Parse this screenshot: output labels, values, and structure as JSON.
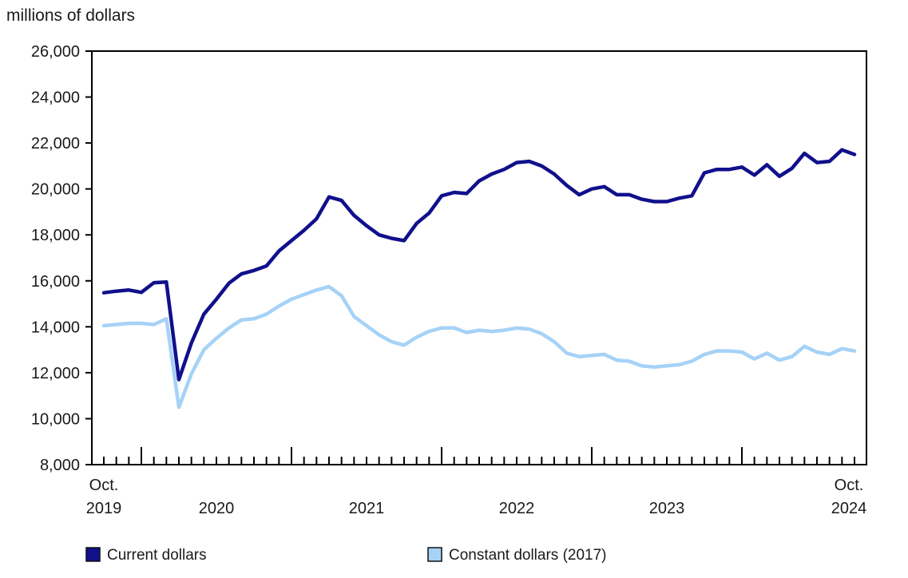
{
  "page": {
    "background": "#ffffff"
  },
  "chart_data": {
    "type": "line",
    "title": "millions of dollars",
    "xlabel": "",
    "ylabel": "millions of dollars",
    "ylim": [
      8000,
      26000
    ],
    "ytick_step": 2000,
    "ytick_values": [
      8000,
      10000,
      12000,
      14000,
      16000,
      18000,
      20000,
      22000,
      24000,
      26000
    ],
    "ytick_labels": [
      "8,000",
      "10,000",
      "12,000",
      "14,000",
      "16,000",
      "18,000",
      "20,000",
      "22,000",
      "24,000",
      "26,000"
    ],
    "x_start_label": {
      "line1": "Oct.",
      "line2": "2019"
    },
    "x_end_label": {
      "line1": "Oct.",
      "line2": "2024"
    },
    "x_year_labels": [
      "2020",
      "2021",
      "2022",
      "2023"
    ],
    "x_year_label_month_indices": [
      9,
      21,
      33,
      45
    ],
    "x_january_month_indices": [
      3,
      15,
      27,
      39,
      51
    ],
    "x_range": "monthly from 2019-10 to 2024-10 (61 points)",
    "grid": false,
    "legend_position": "bottom",
    "series": [
      {
        "name": "Current dollars",
        "color": "#10108c",
        "values": [
          15480,
          15550,
          15600,
          15500,
          15920,
          15950,
          11700,
          13300,
          14550,
          15200,
          15900,
          16300,
          16450,
          16650,
          17300,
          17750,
          18200,
          18700,
          19650,
          19500,
          18850,
          18400,
          18000,
          17850,
          17750,
          18500,
          18950,
          19700,
          19850,
          19800,
          20350,
          20650,
          20850,
          21150,
          21200,
          21000,
          20650,
          20150,
          19750,
          20000,
          20100,
          19750,
          19750,
          19550,
          19450,
          19450,
          19600,
          19700,
          20700,
          20850,
          20850,
          20950,
          20600,
          21050,
          20550,
          20900,
          21550,
          21150,
          21200,
          21700,
          21500
        ]
      },
      {
        "name": "Constant dollars (2017)",
        "color": "#a6d2f7",
        "values": [
          14050,
          14100,
          14150,
          14150,
          14100,
          14350,
          10500,
          11950,
          13000,
          13500,
          13950,
          14300,
          14350,
          14550,
          14900,
          15200,
          15400,
          15600,
          15750,
          15350,
          14450,
          14050,
          13650,
          13350,
          13200,
          13550,
          13800,
          13950,
          13950,
          13750,
          13850,
          13800,
          13850,
          13950,
          13900,
          13700,
          13350,
          12850,
          12700,
          12750,
          12800,
          12550,
          12500,
          12300,
          12250,
          12300,
          12350,
          12500,
          12800,
          12950,
          12950,
          12900,
          12600,
          12850,
          12550,
          12700,
          13150,
          12900,
          12800,
          13050,
          12950
        ]
      }
    ],
    "axis_color": "#000000",
    "swatch_border_color": "#111111"
  }
}
